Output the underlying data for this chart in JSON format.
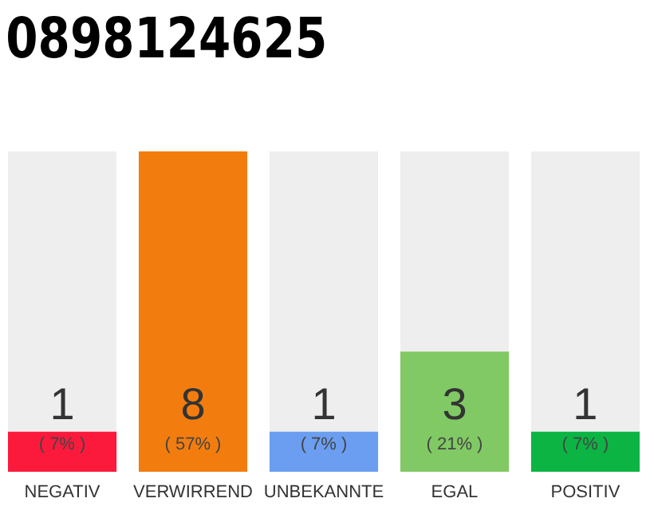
{
  "chart_data": {
    "type": "bar",
    "title": "0898124625",
    "categories": [
      "NEGATIV",
      "VERWIRREND",
      "UNBEKANNTE",
      "EGAL",
      "POSITIV"
    ],
    "values": [
      1,
      8,
      1,
      3,
      1
    ],
    "colors": [
      "#fb1a3c",
      "#f27d0e",
      "#6b9ef0",
      "#80c964",
      "#0cb443"
    ],
    "ylim": [
      0,
      8
    ],
    "data_labels": true,
    "tick_labels": "x",
    "annotations": [
      "( 7% )",
      "( 57% )",
      "( 7% )",
      "( 21% )",
      "( 7% )"
    ]
  }
}
